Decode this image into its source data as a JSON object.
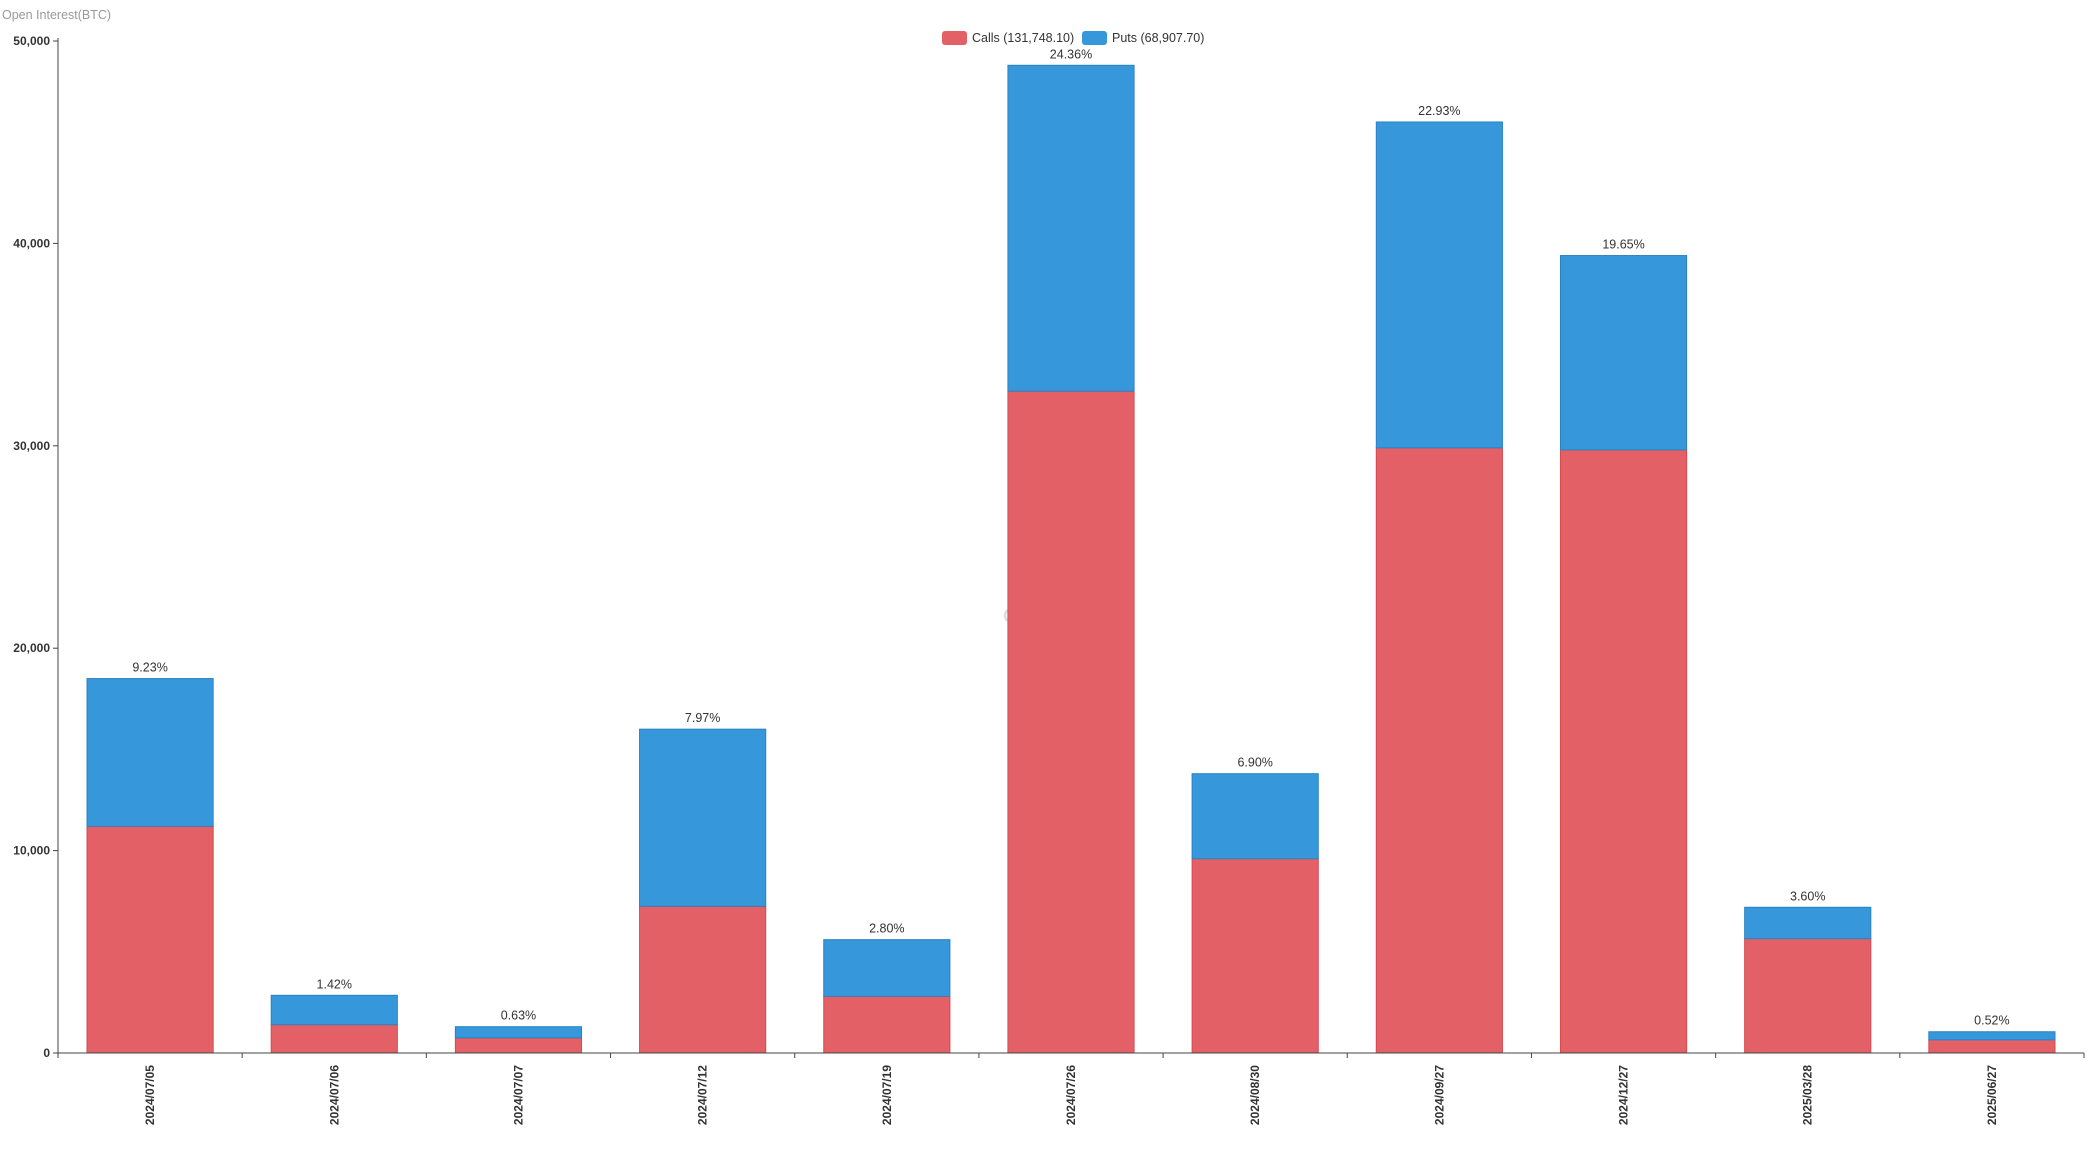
{
  "chart_data": {
    "type": "bar",
    "stacked": true,
    "ylabel": "Open Interest(BTC)",
    "xlabel": "",
    "ylim": [
      0,
      50000
    ],
    "yticks": [
      0,
      10000,
      20000,
      30000,
      40000,
      50000
    ],
    "ytick_labels": [
      "0",
      "10,000",
      "20,000",
      "30,000",
      "40,000",
      "50,000"
    ],
    "grid": false,
    "legend_position": "top-center",
    "watermark": "GREEKS.LIVE",
    "categories": [
      "2024/07/05",
      "2024/07/06",
      "2024/07/07",
      "2024/07/12",
      "2024/07/19",
      "2024/07/26",
      "2024/08/30",
      "2024/09/27",
      "2024/12/27",
      "2025/03/28",
      "2025/06/27"
    ],
    "series": [
      {
        "name": "Calls",
        "legend_label": "Calls (131,748.10)",
        "color": "#e36166",
        "values": [
          11200,
          1400,
          750,
          7250,
          2800,
          32700,
          9600,
          29900,
          29800,
          5650,
          650
        ]
      },
      {
        "name": "Puts",
        "legend_label": "Puts (68,907.70)",
        "color": "#3698db",
        "values": [
          7300,
          1450,
          550,
          8750,
          2800,
          16100,
          4200,
          16100,
          9600,
          1550,
          400
        ]
      }
    ],
    "data_labels": [
      "9.23%",
      "1.42%",
      "0.63%",
      "7.97%",
      "2.80%",
      "24.36%",
      "6.90%",
      "22.93%",
      "19.65%",
      "3.60%",
      "0.52%"
    ]
  }
}
